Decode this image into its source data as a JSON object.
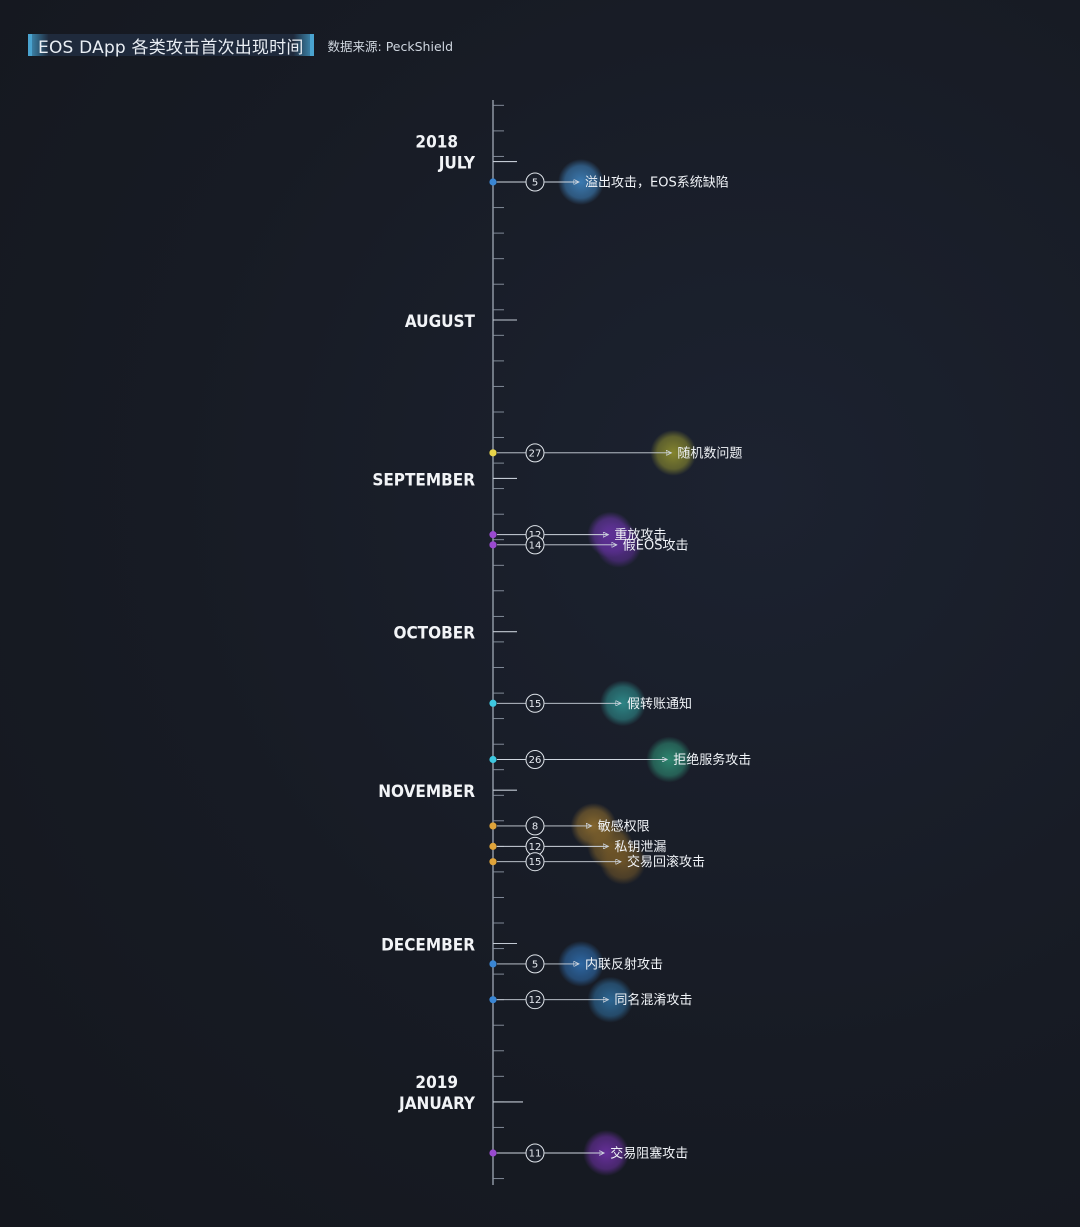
{
  "header": {
    "title": "EOS DApp 各类攻击首次出现时间",
    "source": "数据来源: PeckShield"
  },
  "chart_data": {
    "type": "timeline",
    "title": "EOS DApp 各类攻击首次出现时间",
    "x_range": [
      "2018-07-01",
      "2019-01-31"
    ],
    "months": [
      {
        "date": "2018-07",
        "year": "2018",
        "label": "JULY"
      },
      {
        "date": "2018-08",
        "label": "AUGUST"
      },
      {
        "date": "2018-09",
        "label": "SEPTEMBER"
      },
      {
        "date": "2018-10",
        "label": "OCTOBER"
      },
      {
        "date": "2018-11",
        "label": "NOVEMBER"
      },
      {
        "date": "2018-12",
        "label": "DECEMBER"
      },
      {
        "date": "2019-01",
        "year": "2019",
        "label": "JANUARY"
      }
    ],
    "events": [
      {
        "date": "2018-07-05",
        "day": "5",
        "label": "溢出攻击，EOS系统缺陷",
        "color": "#3a86d4",
        "bubble": "#3d7fb8"
      },
      {
        "date": "2018-08-27",
        "day": "27",
        "label": "随机数问题",
        "color": "#e8d44a",
        "bubble": "#8a8a2e"
      },
      {
        "date": "2018-09-12",
        "day": "12",
        "label": "重放攻击",
        "color": "#9a4ad0",
        "bubble": "#6a36a8"
      },
      {
        "date": "2018-09-14",
        "day": "14",
        "label": "假EOS攻击",
        "color": "#9a4ad0",
        "bubble": "#5a2e90"
      },
      {
        "date": "2018-10-15",
        "day": "15",
        "label": "假转账通知",
        "color": "#3ec8e0",
        "bubble": "#2e8a8a"
      },
      {
        "date": "2018-10-26",
        "day": "26",
        "label": "拒绝服务攻击",
        "color": "#3ec8e0",
        "bubble": "#2e8a72"
      },
      {
        "date": "2018-11-08",
        "day": "8",
        "label": "敏感权限",
        "color": "#e0a43a",
        "bubble": "#8a6a2e"
      },
      {
        "date": "2018-11-12",
        "day": "12",
        "label": "私钥泄漏",
        "color": "#e0a43a",
        "bubble": "#7a5e2a"
      },
      {
        "date": "2018-11-15",
        "day": "15",
        "label": "交易回滚攻击",
        "color": "#e0a43a",
        "bubble": "#6e5428"
      },
      {
        "date": "2018-12-05",
        "day": "5",
        "label": "内联反射攻击",
        "color": "#3a86d4",
        "bubble": "#2e6aa8"
      },
      {
        "date": "2018-12-12",
        "day": "12",
        "label": "同名混淆攻击",
        "color": "#3a86d4",
        "bubble": "#2e6a98"
      },
      {
        "date": "2019-01-11",
        "day": "11",
        "label": "交易阻塞攻击",
        "color": "#9a4ad0",
        "bubble": "#6a30a0"
      }
    ]
  }
}
